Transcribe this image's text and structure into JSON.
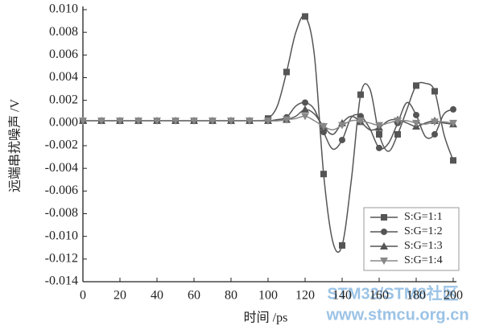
{
  "chart_data": {
    "type": "line",
    "xlabel": "时间 /ps",
    "ylabel": "远端串扰噪声 /V",
    "x": [
      0,
      5,
      10,
      15,
      20,
      25,
      30,
      35,
      40,
      45,
      50,
      55,
      60,
      65,
      70,
      75,
      80,
      85,
      90,
      95,
      100,
      105,
      110,
      115,
      120,
      125,
      130,
      135,
      140,
      145,
      150,
      155,
      160,
      165,
      170,
      175,
      180,
      185,
      190,
      195,
      200
    ],
    "series": [
      {
        "name": "S:G=1:1",
        "color": "#555555",
        "marker": "square",
        "values": [
          0.0002,
          0.0002,
          0.0002,
          0.0002,
          0.0002,
          0.0002,
          0.0002,
          0.0002,
          0.0002,
          0.0002,
          0.0002,
          0.0002,
          0.0002,
          0.0002,
          0.0002,
          0.0002,
          0.0002,
          0.0002,
          0.0002,
          0.0002,
          0.0004,
          0.0015,
          0.0045,
          0.008,
          0.0094,
          0.006,
          -0.0045,
          -0.0105,
          -0.0108,
          -0.005,
          0.0025,
          0.003,
          -0.001,
          -0.0025,
          -0.001,
          0.0012,
          0.0033,
          0.0035,
          0.0028,
          -0.001,
          -0.0033
        ]
      },
      {
        "name": "S:G=1:2",
        "color": "#555555",
        "marker": "circle",
        "values": [
          0.0002,
          0.0002,
          0.0002,
          0.0002,
          0.0002,
          0.0002,
          0.0002,
          0.0002,
          0.0002,
          0.0002,
          0.0002,
          0.0002,
          0.0002,
          0.0002,
          0.0002,
          0.0002,
          0.0002,
          0.0002,
          0.0002,
          0.0002,
          0.0002,
          0.0003,
          0.0005,
          0.0015,
          0.0018,
          0.0012,
          -0.0008,
          -0.0023,
          -0.0015,
          0.0005,
          0.0006,
          -0.0005,
          -0.0022,
          -0.0018,
          0,
          0.0018,
          0.0007,
          -0.0012,
          -0.001,
          0.0008,
          0.0012
        ]
      },
      {
        "name": "S:G=1:3",
        "color": "#555555",
        "marker": "triangle-up",
        "values": [
          0.0002,
          0.0002,
          0.0002,
          0.0002,
          0.0002,
          0.0002,
          0.0002,
          0.0002,
          0.0002,
          0.0002,
          0.0002,
          0.0002,
          0.0002,
          0.0002,
          0.0002,
          0.0002,
          0.0002,
          0.0002,
          0.0002,
          0.0002,
          0.0002,
          0.0002,
          0.0003,
          0.0006,
          0.0012,
          0.0008,
          -0.0003,
          -0.001,
          0,
          0.0006,
          0.0001,
          -0.0006,
          -0.0004,
          0.0002,
          0.0003,
          0,
          -0.0003,
          0,
          0.0002,
          0,
          -0.0001
        ]
      },
      {
        "name": "S:G=1:4",
        "color": "#888888",
        "marker": "triangle-down",
        "values": [
          0.0002,
          0.0002,
          0.0002,
          0.0002,
          0.0002,
          0.0002,
          0.0002,
          0.0002,
          0.0002,
          0.0002,
          0.0002,
          0.0002,
          0.0002,
          0.0002,
          0.0002,
          0.0002,
          0.0002,
          0.0002,
          0.0002,
          0.0002,
          0.0002,
          0.0002,
          0.0003,
          0.0004,
          0.0006,
          0.0002,
          -0.0003,
          -0.0006,
          -0.0002,
          0.0002,
          0.0002,
          0,
          -0.0002,
          0,
          0.0002,
          0.0002,
          0,
          -0.0001,
          0.0001,
          0.0001,
          0
        ]
      }
    ],
    "xlim": [
      0,
      200
    ],
    "xticks": [
      0,
      20,
      40,
      60,
      80,
      100,
      120,
      140,
      160,
      180,
      200
    ],
    "ylim": [
      -0.014,
      0.01
    ],
    "yticks": [
      {
        "value": 0.01,
        "label": "0.010"
      },
      0.008,
      0.006,
      0.004,
      0.002,
      {
        "value": 0,
        "label": "0.000"
      },
      -0.002,
      -0.004,
      -0.006,
      -0.008,
      {
        "value": -0.01,
        "label": "-0.010"
      },
      -0.012,
      -0.014
    ],
    "grid": false,
    "legend": "lower right"
  },
  "watermark": [
    "STM32/STM8社区",
    "www.stmcu.org.cn"
  ]
}
